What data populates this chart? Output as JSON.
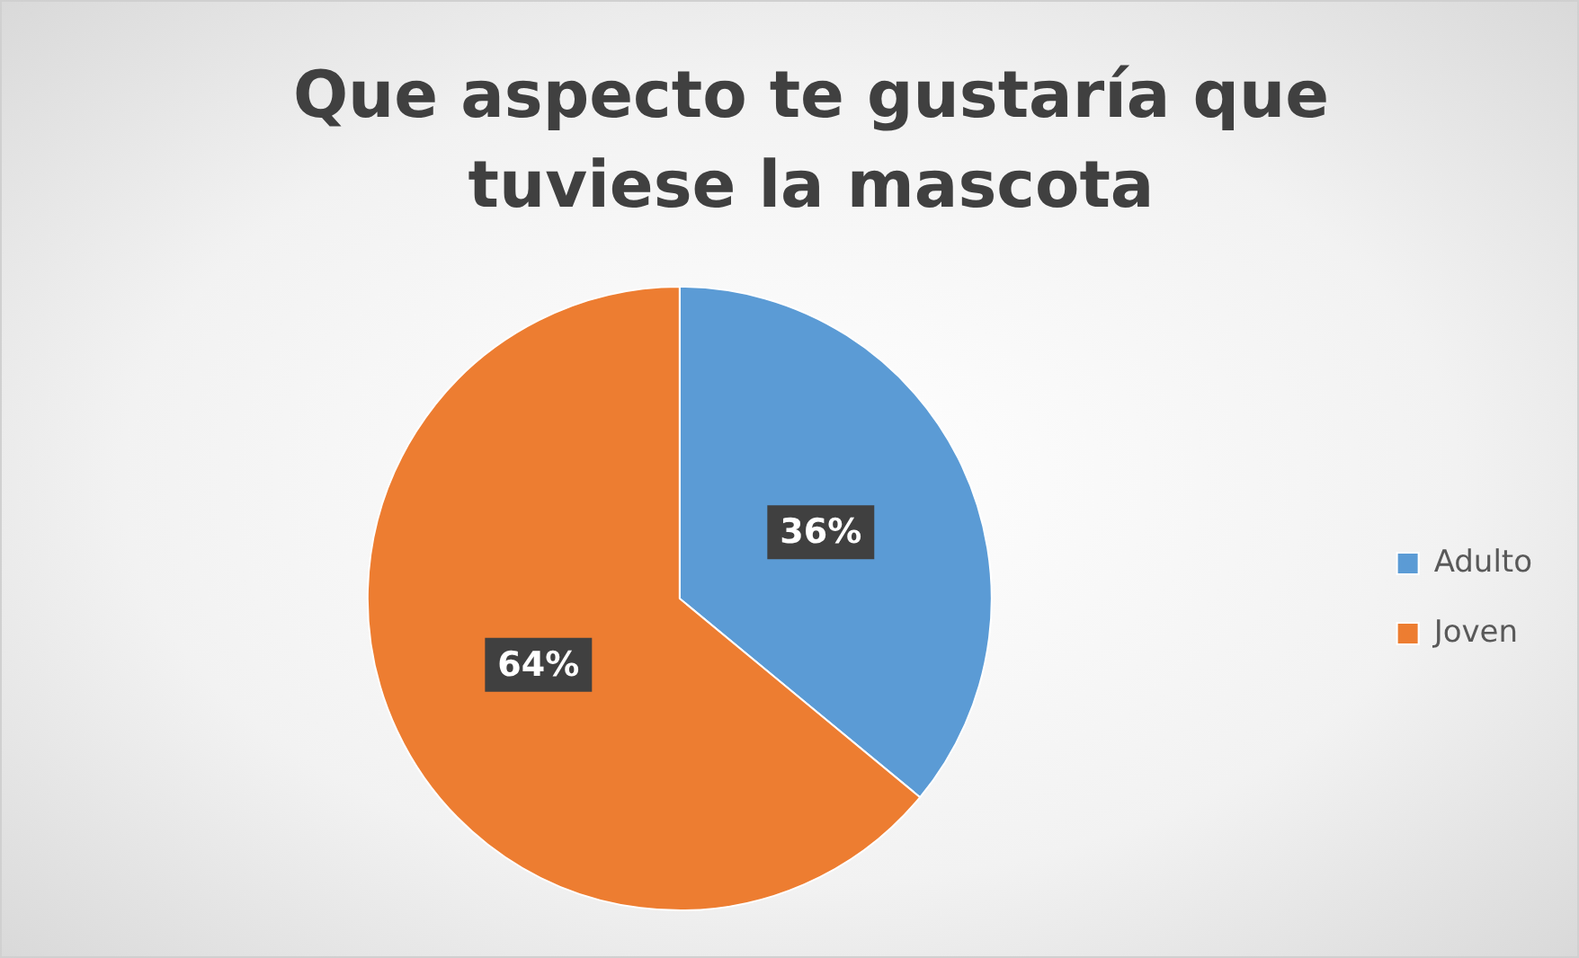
{
  "chart_data": {
    "type": "pie",
    "title": "Que aspecto te gustaría que tuviese la mascota",
    "categories": [
      "Adulto",
      "Joven"
    ],
    "values": [
      36,
      64
    ],
    "colors": [
      "#5b9bd5",
      "#ed7d31"
    ],
    "value_labels": [
      "36%",
      "64%"
    ],
    "legend": "right"
  }
}
